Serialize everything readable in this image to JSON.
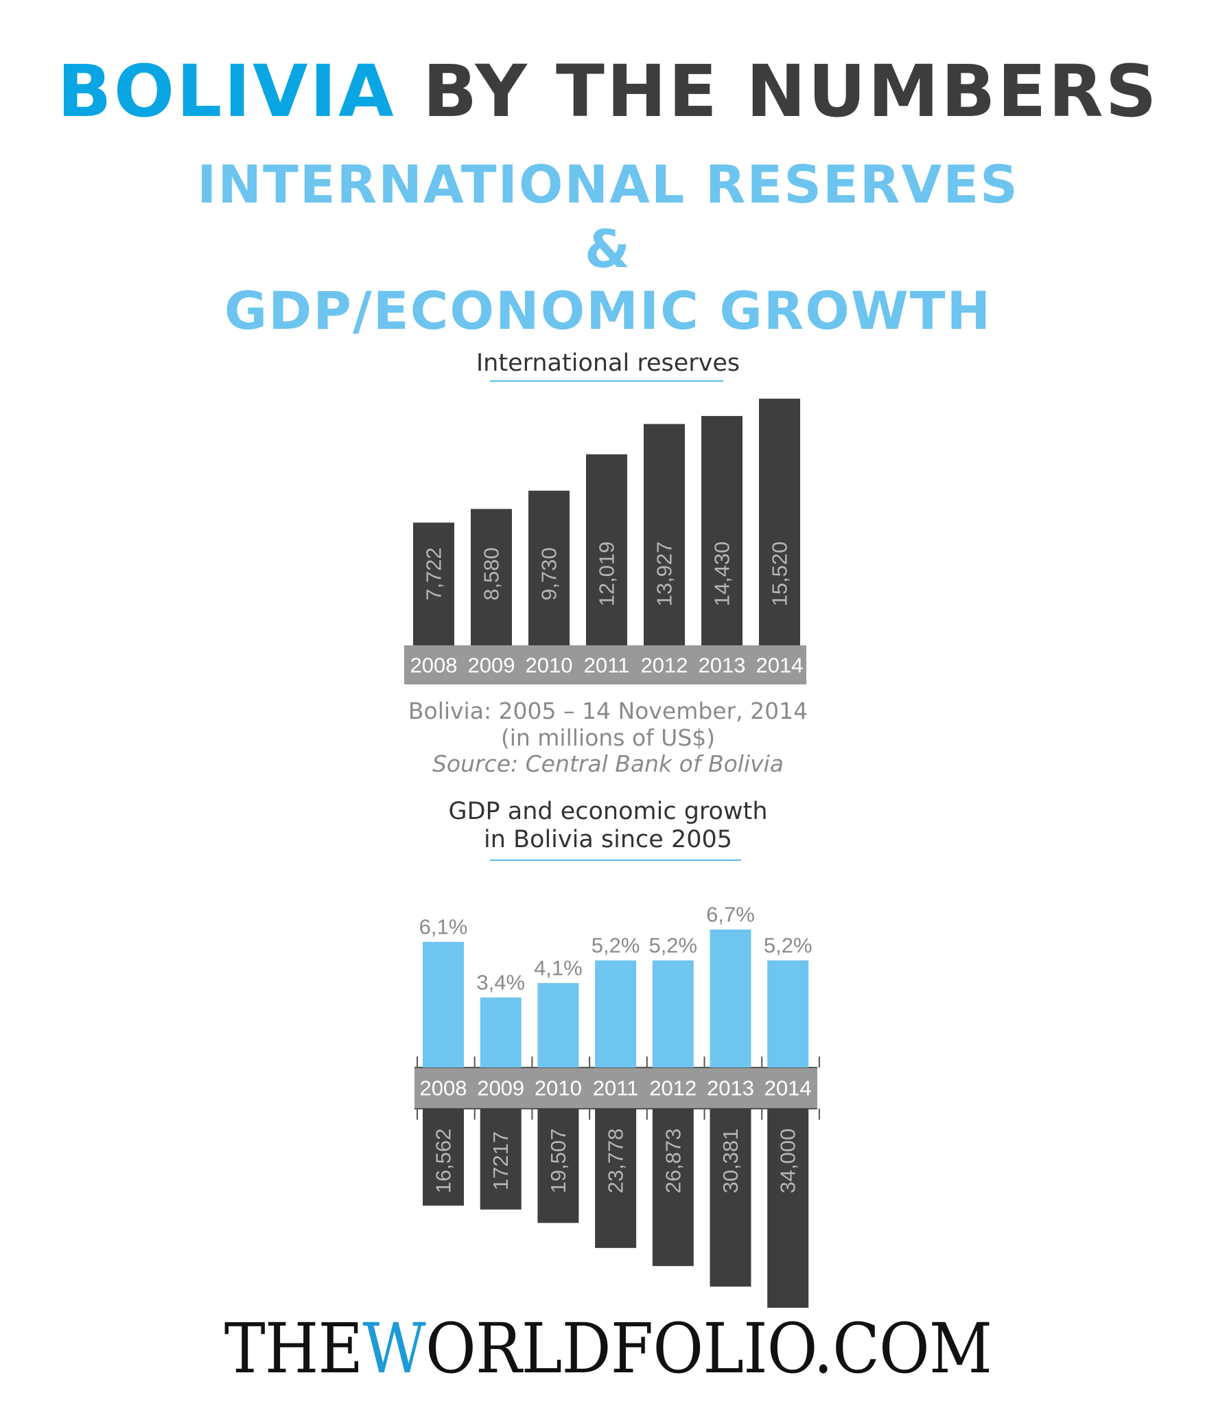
{
  "header": {
    "title_accent": "BOLIVIA",
    "title_rest": " BY THE NUMBERS",
    "subtitle_line1": "INTERNATIONAL RESERVES",
    "subtitle_line2": "&",
    "subtitle_line3": "GDP/ECONOMIC GROWTH"
  },
  "reserves": {
    "heading": "International reserves",
    "note_line1": "Bolivia: 2005 – 14 November, 2014",
    "note_line2": "(in millions of US$)",
    "note_line3": "Source: Central Bank of Bolivia"
  },
  "gdp": {
    "heading_line1": "GDP and economic growth",
    "heading_line2": "in Bolivia since 2005"
  },
  "logo": {
    "pre": "THE",
    "w": "W",
    "post": "ORLDFOLIO.COM"
  },
  "colors": {
    "dark_bar": "#3e3e3e",
    "blue_bar": "#6ec5ef",
    "axis_band": "#999999",
    "accent": "#0aa5e3"
  },
  "chart_data": [
    {
      "type": "bar",
      "title": "International reserves",
      "categories": [
        "2008",
        "2009",
        "2010",
        "2011",
        "2012",
        "2013",
        "2014"
      ],
      "values": [
        7722,
        8580,
        9730,
        12019,
        13927,
        14430,
        15520
      ],
      "labels": [
        "7,722",
        "8,580",
        "9,730",
        "12,019",
        "13,927",
        "14,430",
        "15,520"
      ],
      "color": "#3e3e3e"
    },
    {
      "type": "bar",
      "title": "GDP and economic growth in Bolivia since 2005",
      "categories": [
        "2008",
        "2009",
        "2010",
        "2011",
        "2012",
        "2013",
        "2014"
      ],
      "series": [
        {
          "values": [
            6.1,
            3.4,
            4.1,
            5.2,
            5.2,
            6.7,
            5.2
          ],
          "labels": [
            "6,1%",
            "3,4%",
            "4,1%",
            "5,2%",
            "5,2%",
            "6,7%",
            "5,2%"
          ],
          "color": "#6ec5ef",
          "direction": "up"
        },
        {
          "values": [
            16562,
            17217,
            19507,
            23778,
            26873,
            30381,
            34000
          ],
          "labels": [
            "16,562",
            "17217",
            "19,507",
            "23,778",
            "26,873",
            "30,381",
            "34,000"
          ],
          "color": "#3e3e3e",
          "direction": "down"
        }
      ]
    }
  ]
}
